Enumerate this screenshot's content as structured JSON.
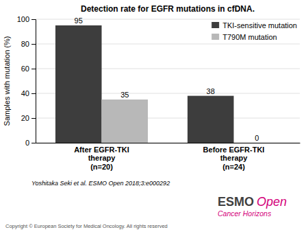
{
  "chart_data": {
    "type": "bar",
    "title": "Detection rate for EGFR mutations in cfDNA.",
    "ylabel": "Samples with mutation (%)",
    "categories": [
      "After EGFR-TKI\ntherapy\n(n=20)",
      "Before EGFR-TKI\ntherapy\n(n=24)"
    ],
    "series": [
      {
        "name": "TKI-sensitive mutation",
        "color": "#3d3d3d",
        "values": [
          95,
          38
        ]
      },
      {
        "name": "T790M mutation",
        "color": "#b8b8b8",
        "values": [
          35,
          0
        ]
      }
    ],
    "ylim": [
      0,
      100
    ],
    "yticks": [
      0,
      20,
      40,
      60,
      80,
      100
    ],
    "grid": true,
    "legend": "upper right",
    "data_labels": true,
    "annotations": [
      "Yoshitaka Seki et al. ESMO Open 2018;3:e000292",
      "Copyright © European Society for Medical Oncology. All rights reserved",
      "ESMO",
      "Open",
      "Cancer Horizons"
    ]
  }
}
